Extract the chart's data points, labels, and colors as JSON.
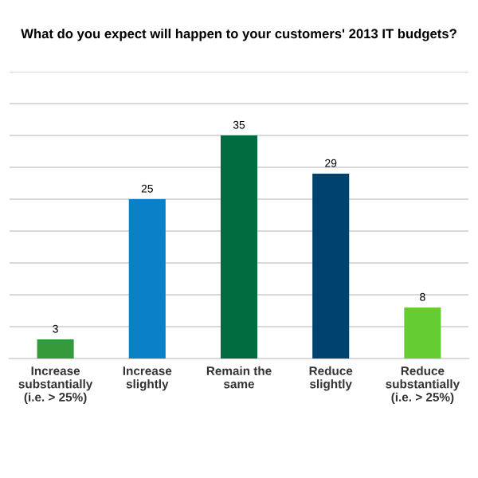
{
  "chart_data": {
    "type": "bar",
    "title": "What do you expect will happen to your customers' 2013 IT budgets?",
    "categories": [
      "Increase substantially (i.e. > 25%)",
      "Increase slightly",
      "Remain the same",
      "Reduce slightly",
      "Reduce substantially (i.e. > 25%)"
    ],
    "values": [
      3,
      25,
      35,
      29,
      8
    ],
    "colors": [
      "#359a3a",
      "#0a80c8",
      "#006b3e",
      "#00426f",
      "#66cc33"
    ],
    "data_labels": true,
    "ylim": [
      0,
      45
    ],
    "yticks": [
      {
        "value": 0,
        "label": null
      },
      {
        "value": 5,
        "label": null
      },
      {
        "value": 10,
        "label": null
      },
      {
        "value": 15,
        "label": null
      },
      {
        "value": 20,
        "label": null
      },
      {
        "value": 25,
        "label": null
      },
      {
        "value": 30,
        "label": null
      },
      {
        "value": 35,
        "label": null
      },
      {
        "value": 40,
        "label": null
      },
      {
        "value": 45,
        "label": null
      }
    ],
    "tick_labels": "x",
    "grid": "y"
  }
}
